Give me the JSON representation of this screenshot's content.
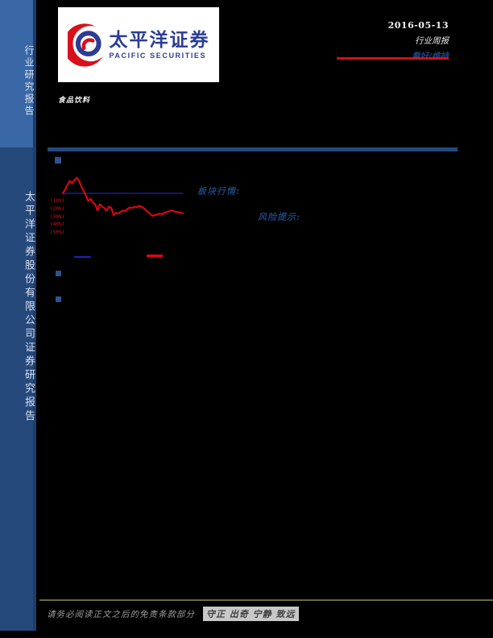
{
  "sidebar": {
    "top_label": "行业研究报告",
    "bottom_label": "太平洋证券股份有限公司证券研究报告"
  },
  "header": {
    "logo_cn": "太平洋证券",
    "logo_en": "PACIFIC SECURITIES",
    "date": "2016-05-13",
    "report_type": "行业周报",
    "rating": "看好/维持"
  },
  "industry_label": "食品饮料",
  "sections": {
    "market_label": "板块行情:",
    "risk_label": "风险提示:"
  },
  "footer": {
    "disclaimer": "请务必阅读正文之后的免责条款部分",
    "motto": "守正 出奇 宁静 致远"
  },
  "colors": {
    "sidebar_top": "#3a67a5",
    "sidebar_bottom": "#26497b",
    "accent_red": "#d40f1a",
    "rating_blue": "#1d4383",
    "rule_blue": "#24497e",
    "bullet_blue": "#2c5590",
    "footer_olive": "#6e683a",
    "logo_blue": "#2b3d95"
  },
  "chart_data": {
    "type": "line",
    "title": "板块行情",
    "xlabel": "",
    "ylabel": "",
    "x_labels_visible": false,
    "yticks": [
      "(10%)",
      "(20%)",
      "(30%)",
      "(40%)",
      "(50%)"
    ],
    "ytick_values": [
      -10,
      -20,
      -30,
      -40,
      -50
    ],
    "ylim": [
      -55,
      25
    ],
    "grid": false,
    "legend_position": "bottom",
    "series": [
      {
        "name": "baseline",
        "color": "#2025b0",
        "style": "flat",
        "value": 0
      },
      {
        "name": "sector",
        "color": "#e60510",
        "values": [
          0,
          5,
          11,
          16,
          13,
          17,
          20,
          16,
          9,
          3,
          -3,
          -10,
          -7,
          -12,
          -14,
          -22,
          -14,
          -17,
          -19,
          -22,
          -17,
          -19,
          -28,
          -25,
          -26,
          -24,
          -22,
          -23,
          -20,
          -18,
          -19,
          -17,
          -18,
          -16,
          -17,
          -19,
          -22,
          -24,
          -27,
          -29,
          -28,
          -27,
          -26,
          -27,
          -25,
          -24,
          -23,
          -22,
          -23,
          -24,
          -24,
          -25,
          -26
        ]
      }
    ]
  }
}
